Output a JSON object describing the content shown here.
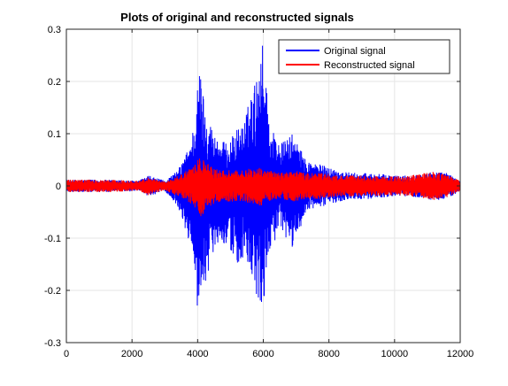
{
  "chart_data": {
    "type": "line",
    "title": "Plots of original and reconstructed signals",
    "xlabel": "",
    "ylabel": "",
    "xlim": [
      0,
      12000
    ],
    "ylim": [
      -0.3,
      0.3
    ],
    "xticks": [
      0,
      2000,
      4000,
      6000,
      8000,
      10000,
      12000
    ],
    "yticks": [
      -0.3,
      -0.2,
      -0.1,
      0,
      0.1,
      0.2,
      0.3
    ],
    "xtick_labels": [
      "0",
      "2000",
      "4000",
      "6000",
      "8000",
      "10000",
      "12000"
    ],
    "ytick_labels": [
      "-0.3",
      "-0.2",
      "-0.1",
      "0",
      "0.1",
      "0.2",
      "0.3"
    ],
    "grid": true,
    "legend_placement": "top-right",
    "series": [
      {
        "name": "Original signal",
        "color": "#0000ff",
        "envelope_x": [
          0,
          800,
          1200,
          2200,
          2500,
          3000,
          3400,
          3700,
          3900,
          4000,
          4100,
          4200,
          4350,
          4500,
          4700,
          4900,
          5200,
          5400,
          5600,
          5800,
          5950,
          6000,
          6050,
          6200,
          6500,
          6900,
          7300,
          7800,
          8300,
          8700,
          9200,
          10000,
          10500,
          11200,
          11600,
          12000
        ],
        "envelope_upper": [
          0.012,
          0.012,
          0.012,
          0.01,
          0.02,
          0.01,
          0.03,
          0.07,
          0.12,
          0.2,
          0.23,
          0.16,
          0.13,
          0.1,
          0.09,
          0.08,
          0.11,
          0.12,
          0.17,
          0.21,
          0.29,
          0.26,
          0.24,
          0.12,
          0.08,
          0.1,
          0.05,
          0.04,
          0.03,
          0.025,
          0.025,
          0.02,
          0.02,
          0.028,
          0.025,
          0.01
        ],
        "envelope_lower": [
          -0.012,
          -0.012,
          -0.012,
          -0.01,
          -0.02,
          -0.01,
          -0.04,
          -0.1,
          -0.15,
          -0.24,
          -0.21,
          -0.19,
          -0.16,
          -0.12,
          -0.1,
          -0.12,
          -0.15,
          -0.14,
          -0.18,
          -0.22,
          -0.26,
          -0.24,
          -0.2,
          -0.12,
          -0.09,
          -0.12,
          -0.05,
          -0.04,
          -0.03,
          -0.025,
          -0.025,
          -0.02,
          -0.02,
          -0.028,
          -0.025,
          -0.01
        ]
      },
      {
        "name": "Reconstructed signal",
        "color": "#ff0000",
        "envelope_x": [
          0,
          800,
          1200,
          2200,
          2500,
          3000,
          3400,
          3700,
          3900,
          4000,
          4100,
          4200,
          4350,
          4500,
          4700,
          4900,
          5200,
          5400,
          5600,
          5800,
          5950,
          6000,
          6050,
          6200,
          6500,
          6900,
          7300,
          7800,
          8300,
          8700,
          9200,
          10000,
          10500,
          11200,
          11600,
          12000
        ],
        "envelope_upper": [
          0.012,
          0.012,
          0.012,
          0.01,
          0.018,
          0.008,
          0.02,
          0.03,
          0.04,
          0.05,
          0.06,
          0.05,
          0.04,
          0.035,
          0.03,
          0.03,
          0.03,
          0.03,
          0.035,
          0.035,
          0.04,
          0.035,
          0.03,
          0.03,
          0.025,
          0.03,
          0.025,
          0.025,
          0.02,
          0.02,
          0.02,
          0.018,
          0.02,
          0.028,
          0.022,
          0.01
        ],
        "envelope_lower": [
          -0.012,
          -0.012,
          -0.012,
          -0.01,
          -0.018,
          -0.008,
          -0.02,
          -0.03,
          -0.04,
          -0.05,
          -0.06,
          -0.05,
          -0.04,
          -0.035,
          -0.03,
          -0.03,
          -0.03,
          -0.03,
          -0.035,
          -0.035,
          -0.04,
          -0.035,
          -0.03,
          -0.03,
          -0.025,
          -0.03,
          -0.025,
          -0.025,
          -0.02,
          -0.02,
          -0.02,
          -0.018,
          -0.02,
          -0.028,
          -0.022,
          -0.01
        ]
      }
    ]
  }
}
